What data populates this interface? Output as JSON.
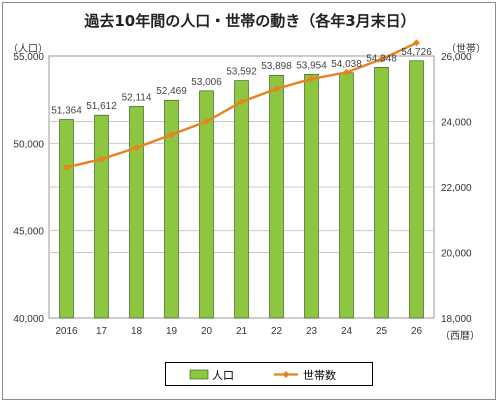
{
  "chart_data": {
    "type": "bar+line",
    "title": "過去10年間の人口・世帯の動き（各年3月末日）",
    "left_unit": "（人口）",
    "right_unit": "（世帯）",
    "x_unit": "（西暦）",
    "categories": [
      "2016",
      "17",
      "18",
      "19",
      "20",
      "21",
      "22",
      "23",
      "24",
      "25",
      "26"
    ],
    "series": [
      {
        "name": "人口",
        "type": "bar",
        "axis": "left",
        "color": "#8dc63f",
        "values": [
          51364,
          51612,
          52114,
          52469,
          53006,
          53592,
          53898,
          53954,
          54038,
          54348,
          54726
        ],
        "labels": [
          "51,364",
          "51,612",
          "52,114",
          "52,469",
          "53,006",
          "53,592",
          "53,898",
          "53,954",
          "54,038",
          "54,348",
          "54,726"
        ]
      },
      {
        "name": "世帯数",
        "type": "line",
        "axis": "right",
        "color": "#e8821f",
        "values": [
          22600,
          22850,
          23200,
          23600,
          24000,
          24600,
          25000,
          25300,
          25500,
          25900,
          26400
        ]
      }
    ],
    "y_left": {
      "min": 40000,
      "max": 55000,
      "ticks": [
        "40,000",
        "45,000",
        "50,000",
        "55,000"
      ],
      "tick_values": [
        40000,
        45000,
        50000,
        55000
      ]
    },
    "y_right": {
      "min": 18000,
      "max": 26000,
      "ticks": [
        "18,000",
        "20,000",
        "22,000",
        "24,000",
        "26,000"
      ],
      "tick_values": [
        18000,
        20000,
        22000,
        24000,
        26000
      ]
    },
    "grid": true,
    "legend_position": "bottom"
  }
}
